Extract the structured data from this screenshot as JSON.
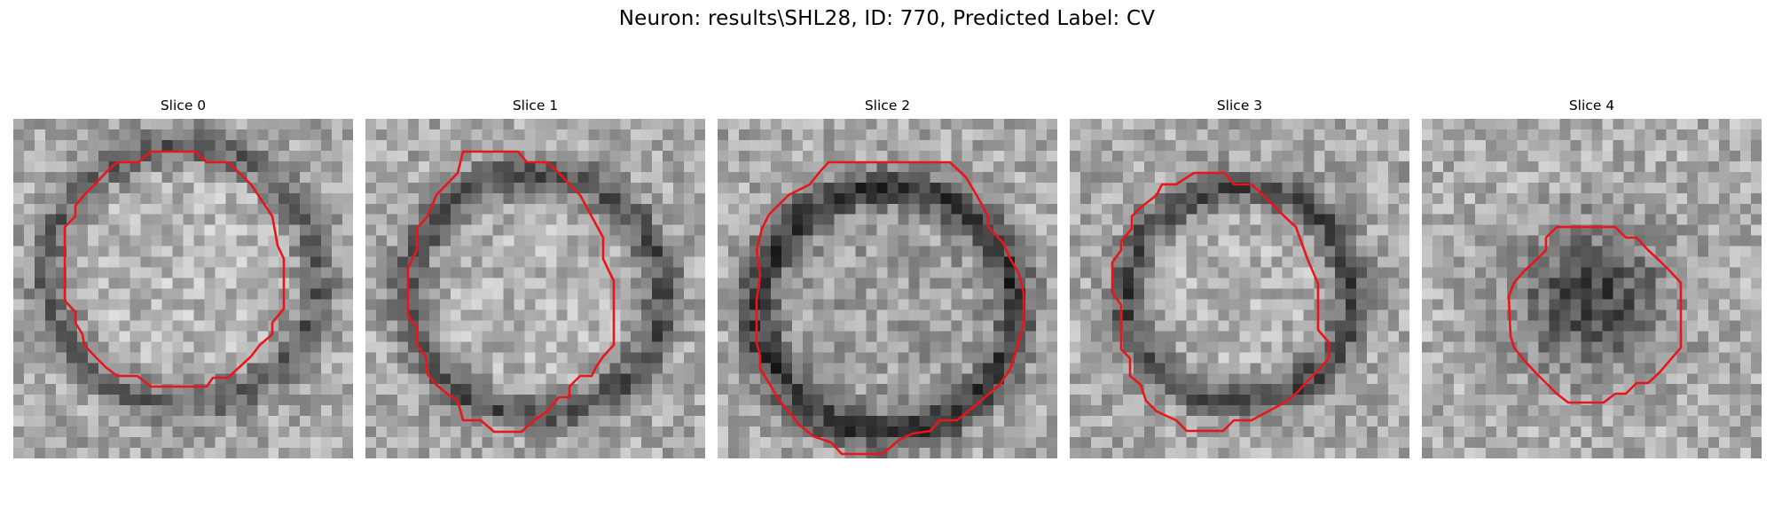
{
  "figure": {
    "title": "Neuron: results\\SHL28, ID: 770, Predicted Label: CV"
  },
  "slices": [
    {
      "label": "Slice 0",
      "variant": 0
    },
    {
      "label": "Slice 1",
      "variant": 1
    },
    {
      "label": "Slice 2",
      "variant": 2
    },
    {
      "label": "Slice 3",
      "variant": 3
    },
    {
      "label": "Slice 4",
      "variant": 4
    }
  ],
  "colors": {
    "contour": "#e8161a",
    "background": "#ffffff"
  }
}
